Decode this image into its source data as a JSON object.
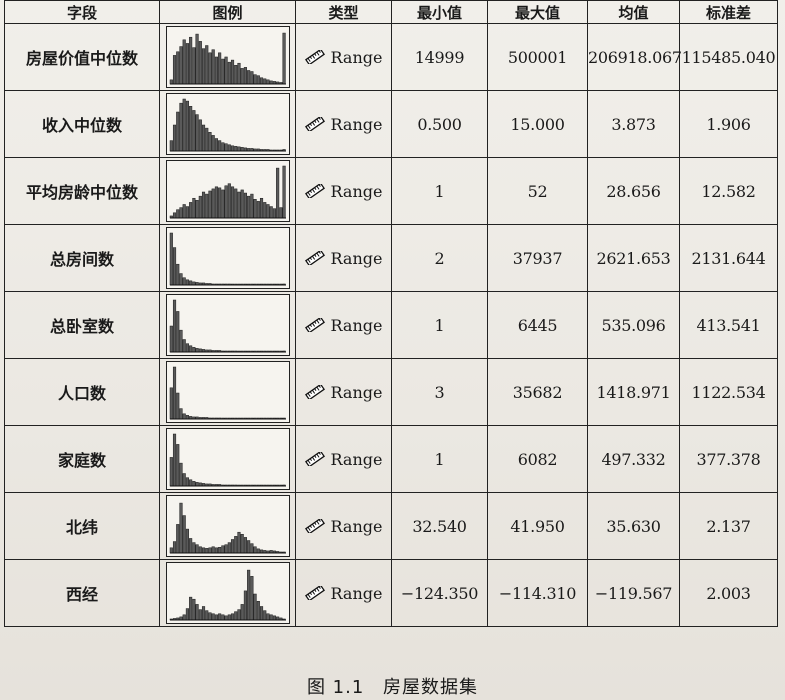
{
  "table": {
    "headers": [
      "字段",
      "图例",
      "类型",
      "最小值",
      "最大值",
      "均值",
      "标准差"
    ],
    "rows": [
      {
        "field": "房屋价值中位数",
        "type": "Range",
        "min": "14999",
        "max": "500001",
        "mean": "206918.067",
        "std": "115485.040",
        "hist": [
          0.08,
          0.55,
          0.62,
          0.72,
          0.85,
          0.78,
          0.9,
          0.7,
          0.96,
          0.82,
          0.68,
          0.74,
          0.6,
          0.66,
          0.52,
          0.6,
          0.48,
          0.52,
          0.42,
          0.46,
          0.36,
          0.4,
          0.3,
          0.32,
          0.26,
          0.24,
          0.18,
          0.16,
          0.12,
          0.1,
          0.08,
          0.06,
          0.05,
          0.04,
          0.03,
          0.98
        ]
      },
      {
        "field": "收入中位数",
        "type": "Range",
        "min": "0.500",
        "max": "15.000",
        "mean": "3.873",
        "std": "1.906",
        "hist": [
          0.2,
          0.5,
          0.75,
          0.92,
          1.0,
          0.96,
          0.86,
          0.78,
          0.7,
          0.6,
          0.5,
          0.44,
          0.36,
          0.3,
          0.24,
          0.2,
          0.16,
          0.14,
          0.12,
          0.1,
          0.09,
          0.08,
          0.07,
          0.06,
          0.05,
          0.05,
          0.04,
          0.04,
          0.03,
          0.03,
          0.03,
          0.02,
          0.02,
          0.02,
          0.02,
          0.03
        ]
      },
      {
        "field": "平均房龄中位数",
        "type": "Range",
        "min": "1",
        "max": "52",
        "mean": "28.656",
        "std": "12.582",
        "hist": [
          0.04,
          0.1,
          0.16,
          0.2,
          0.26,
          0.22,
          0.3,
          0.38,
          0.34,
          0.42,
          0.5,
          0.46,
          0.52,
          0.56,
          0.6,
          0.58,
          0.54,
          0.62,
          0.66,
          0.6,
          0.56,
          0.5,
          0.54,
          0.48,
          0.42,
          0.46,
          0.36,
          0.32,
          0.38,
          0.3,
          0.26,
          0.22,
          0.18,
          0.96,
          0.2,
          1.0
        ]
      },
      {
        "field": "总房间数",
        "type": "Range",
        "min": "2",
        "max": "37937",
        "mean": "2621.653",
        "std": "2131.644",
        "hist": [
          1.0,
          0.72,
          0.4,
          0.22,
          0.14,
          0.1,
          0.08,
          0.06,
          0.05,
          0.04,
          0.04,
          0.03,
          0.03,
          0.02,
          0.02,
          0.02,
          0.02,
          0.02,
          0.02,
          0.01,
          0.01,
          0.01,
          0.01,
          0.01,
          0.01,
          0.01,
          0.01,
          0.01,
          0.01,
          0.01,
          0.01,
          0.01,
          0.01,
          0.01,
          0.01,
          0.02
        ]
      },
      {
        "field": "总卧室数",
        "type": "Range",
        "min": "1",
        "max": "6445",
        "mean": "535.096",
        "std": "413.541",
        "hist": [
          0.5,
          1.0,
          0.78,
          0.42,
          0.24,
          0.16,
          0.12,
          0.09,
          0.07,
          0.06,
          0.05,
          0.04,
          0.04,
          0.03,
          0.03,
          0.03,
          0.02,
          0.02,
          0.02,
          0.02,
          0.02,
          0.01,
          0.01,
          0.01,
          0.01,
          0.01,
          0.01,
          0.01,
          0.01,
          0.01,
          0.01,
          0.01,
          0.01,
          0.01,
          0.01,
          0.02
        ]
      },
      {
        "field": "人口数",
        "type": "Range",
        "min": "3",
        "max": "35682",
        "mean": "1418.971",
        "std": "1122.534",
        "hist": [
          0.6,
          1.0,
          0.5,
          0.2,
          0.1,
          0.07,
          0.05,
          0.04,
          0.04,
          0.03,
          0.03,
          0.03,
          0.02,
          0.02,
          0.02,
          0.02,
          0.01,
          0.01,
          0.01,
          0.01,
          0.01,
          0.01,
          0.01,
          0.01,
          0.01,
          0.01,
          0.01,
          0.01,
          0.01,
          0.01,
          0.01,
          0.01,
          0.01,
          0.01,
          0.01,
          0.01
        ]
      },
      {
        "field": "家庭数",
        "type": "Range",
        "min": "1",
        "max": "6082",
        "mean": "497.332",
        "std": "377.378",
        "hist": [
          0.55,
          1.0,
          0.8,
          0.44,
          0.24,
          0.16,
          0.12,
          0.09,
          0.07,
          0.06,
          0.05,
          0.04,
          0.04,
          0.03,
          0.03,
          0.03,
          0.02,
          0.02,
          0.02,
          0.02,
          0.02,
          0.01,
          0.01,
          0.01,
          0.01,
          0.01,
          0.01,
          0.01,
          0.01,
          0.01,
          0.01,
          0.01,
          0.01,
          0.01,
          0.01,
          0.02
        ]
      },
      {
        "field": "北纬",
        "type": "Range",
        "min": "32.540",
        "max": "41.950",
        "mean": "35.630",
        "std": "2.137",
        "hist": [
          0.1,
          0.22,
          0.55,
          0.96,
          0.72,
          0.46,
          0.28,
          0.2,
          0.16,
          0.12,
          0.1,
          0.09,
          0.1,
          0.12,
          0.1,
          0.11,
          0.14,
          0.16,
          0.2,
          0.26,
          0.32,
          0.4,
          0.36,
          0.3,
          0.24,
          0.18,
          0.12,
          0.08,
          0.06,
          0.05,
          0.04,
          0.05,
          0.04,
          0.03,
          0.02,
          0.02
        ]
      },
      {
        "field": "西经",
        "type": "Range",
        "min": "−124.350",
        "max": "−114.310",
        "mean": "−119.567",
        "std": "2.003",
        "hist": [
          0.02,
          0.03,
          0.04,
          0.06,
          0.1,
          0.22,
          0.44,
          0.4,
          0.3,
          0.2,
          0.26,
          0.18,
          0.14,
          0.12,
          0.1,
          0.12,
          0.1,
          0.08,
          0.1,
          0.12,
          0.16,
          0.2,
          0.3,
          0.56,
          0.96,
          0.84,
          0.5,
          0.36,
          0.26,
          0.18,
          0.12,
          0.1,
          0.08,
          0.06,
          0.04,
          0.02
        ]
      }
    ]
  },
  "caption": {
    "number": "图 1.1",
    "title": "房屋数据集"
  },
  "colors": {
    "bar_fill": "#5a5a5a",
    "bar_stroke": "#1a1a1a",
    "line": "#222222"
  }
}
